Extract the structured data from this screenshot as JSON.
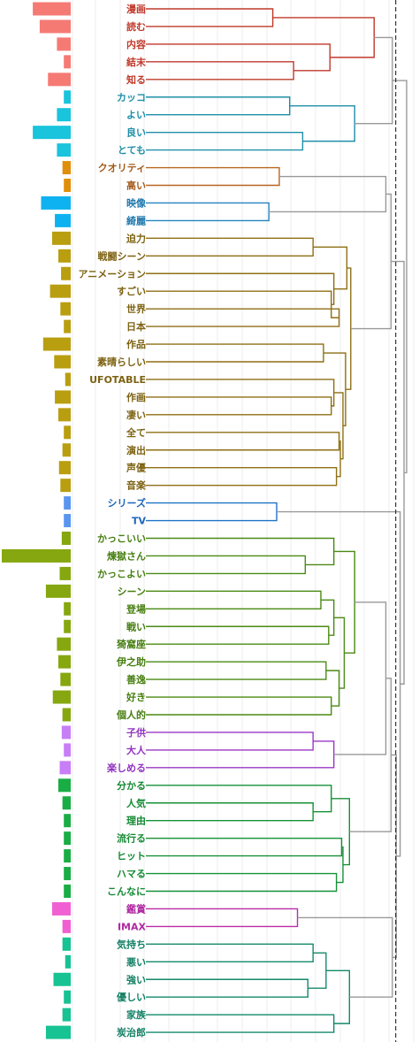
{
  "leaves": [
    {
      "label": "漫画",
      "freq": 0.55,
      "cluster": 0
    },
    {
      "label": "読む",
      "freq": 0.45,
      "cluster": 0
    },
    {
      "label": "内容",
      "freq": 0.2,
      "cluster": 0
    },
    {
      "label": "結末",
      "freq": 0.1,
      "cluster": 0
    },
    {
      "label": "知る",
      "freq": 0.33,
      "cluster": 0
    },
    {
      "label": "カッコ",
      "freq": 0.1,
      "cluster": 1
    },
    {
      "label": "よい",
      "freq": 0.2,
      "cluster": 1
    },
    {
      "label": "良い",
      "freq": 0.55,
      "cluster": 1
    },
    {
      "label": "とても",
      "freq": 0.2,
      "cluster": 1
    },
    {
      "label": "クオリティ",
      "freq": 0.12,
      "cluster": 2
    },
    {
      "label": "高い",
      "freq": 0.1,
      "cluster": 2
    },
    {
      "label": "映像",
      "freq": 0.43,
      "cluster": 3
    },
    {
      "label": "綺麗",
      "freq": 0.23,
      "cluster": 3
    },
    {
      "label": "迫力",
      "freq": 0.27,
      "cluster": 4
    },
    {
      "label": "戦闘シーン",
      "freq": 0.18,
      "cluster": 4
    },
    {
      "label": "アニメーション",
      "freq": 0.14,
      "cluster": 4
    },
    {
      "label": "すごい",
      "freq": 0.3,
      "cluster": 4
    },
    {
      "label": "世界",
      "freq": 0.15,
      "cluster": 4
    },
    {
      "label": "日本",
      "freq": 0.1,
      "cluster": 4
    },
    {
      "label": "作品",
      "freq": 0.4,
      "cluster": 4
    },
    {
      "label": "素晴らしい",
      "freq": 0.24,
      "cluster": 4
    },
    {
      "label": "UFOTABLE",
      "freq": 0.08,
      "cluster": 4
    },
    {
      "label": "作画",
      "freq": 0.23,
      "cluster": 4
    },
    {
      "label": "凄い",
      "freq": 0.18,
      "cluster": 4
    },
    {
      "label": "全て",
      "freq": 0.1,
      "cluster": 4
    },
    {
      "label": "演出",
      "freq": 0.12,
      "cluster": 4
    },
    {
      "label": "声優",
      "freq": 0.17,
      "cluster": 4
    },
    {
      "label": "音楽",
      "freq": 0.15,
      "cluster": 4
    },
    {
      "label": "シリーズ",
      "freq": 0.1,
      "cluster": 5
    },
    {
      "label": "TV",
      "freq": 0.1,
      "cluster": 5
    },
    {
      "label": "かっこいい",
      "freq": 0.13,
      "cluster": 6
    },
    {
      "label": "煉獄さん",
      "freq": 1.0,
      "cluster": 6
    },
    {
      "label": "かっこよい",
      "freq": 0.16,
      "cluster": 6
    },
    {
      "label": "シーン",
      "freq": 0.36,
      "cluster": 6
    },
    {
      "label": "登場",
      "freq": 0.1,
      "cluster": 6
    },
    {
      "label": "戦い",
      "freq": 0.1,
      "cluster": 6
    },
    {
      "label": "猗窩座",
      "freq": 0.2,
      "cluster": 6
    },
    {
      "label": "伊之助",
      "freq": 0.18,
      "cluster": 6
    },
    {
      "label": "善逸",
      "freq": 0.15,
      "cluster": 6
    },
    {
      "label": "好き",
      "freq": 0.26,
      "cluster": 6
    },
    {
      "label": "個人的",
      "freq": 0.12,
      "cluster": 6
    },
    {
      "label": "子供",
      "freq": 0.13,
      "cluster": 7
    },
    {
      "label": "大人",
      "freq": 0.1,
      "cluster": 7
    },
    {
      "label": "楽しめる",
      "freq": 0.16,
      "cluster": 7
    },
    {
      "label": "分かる",
      "freq": 0.18,
      "cluster": 8
    },
    {
      "label": "人気",
      "freq": 0.12,
      "cluster": 8
    },
    {
      "label": "理由",
      "freq": 0.1,
      "cluster": 8
    },
    {
      "label": "流行る",
      "freq": 0.1,
      "cluster": 8
    },
    {
      "label": "ヒット",
      "freq": 0.1,
      "cluster": 8
    },
    {
      "label": "ハマる",
      "freq": 0.1,
      "cluster": 8
    },
    {
      "label": "こんなに",
      "freq": 0.1,
      "cluster": 8
    },
    {
      "label": "鑑賞",
      "freq": 0.27,
      "cluster": 9
    },
    {
      "label": "IMAX",
      "freq": 0.12,
      "cluster": 9
    },
    {
      "label": "気持ち",
      "freq": 0.12,
      "cluster": 10
    },
    {
      "label": "悪い",
      "freq": 0.08,
      "cluster": 10
    },
    {
      "label": "強い",
      "freq": 0.25,
      "cluster": 10
    },
    {
      "label": "優しい",
      "freq": 0.1,
      "cluster": 10
    },
    {
      "label": "家族",
      "freq": 0.12,
      "cluster": 10
    },
    {
      "label": "炭治郎",
      "freq": 0.36,
      "cluster": 10
    }
  ],
  "cluster_colors": [
    {
      "line": "#c0392b",
      "bar": "#f57a74",
      "text": "#c0392b"
    },
    {
      "line": "#1f8fa8",
      "bar": "#19c4dc",
      "text": "#1f8fa8"
    },
    {
      "line": "#b8651c",
      "bar": "#e08f0c",
      "text": "#a35a1a"
    },
    {
      "line": "#2383bf",
      "bar": "#0fb2f0",
      "text": "#1f77ad"
    },
    {
      "line": "#8e6f14",
      "bar": "#b99e10",
      "text": "#7d6212"
    },
    {
      "line": "#1f72c7",
      "bar": "#5a96ef",
      "text": "#1f66b8"
    },
    {
      "line": "#4a8a14",
      "bar": "#86a70f",
      "text": "#477f12"
    },
    {
      "line": "#9a37c6",
      "bar": "#c77ef6",
      "text": "#9234c0"
    },
    {
      "line": "#169137",
      "bar": "#19ad44",
      "text": "#148a33"
    },
    {
      "line": "#b92ba8",
      "bar": "#f060d2",
      "text": "#b02aa2"
    },
    {
      "line": "#14896a",
      "bar": "#17c293",
      "text": "#138065"
    }
  ],
  "connector_color": "#999999",
  "cut_line": "dashed",
  "merges": [
    [
      0,
      1,
      0.3
    ],
    [
      3,
      4,
      0.33
    ],
    [
      2,
      60,
      0.37
    ],
    [
      59,
      61,
      0.42
    ],
    [
      7,
      8,
      0.35
    ],
    [
      5,
      6,
      0.32
    ],
    [
      63,
      64,
      0.4
    ],
    [
      9,
      10,
      0.32
    ],
    [
      11,
      12,
      0.3
    ],
    [
      14,
      15,
      0.36
    ],
    [
      14,
      15,
      0.36
    ],
    [
      28,
      29,
      0.31
    ],
    [
      41,
      42,
      0.35
    ],
    [
      68,
      43,
      0.38
    ],
    [
      51,
      52,
      0.34
    ]
  ]
}
